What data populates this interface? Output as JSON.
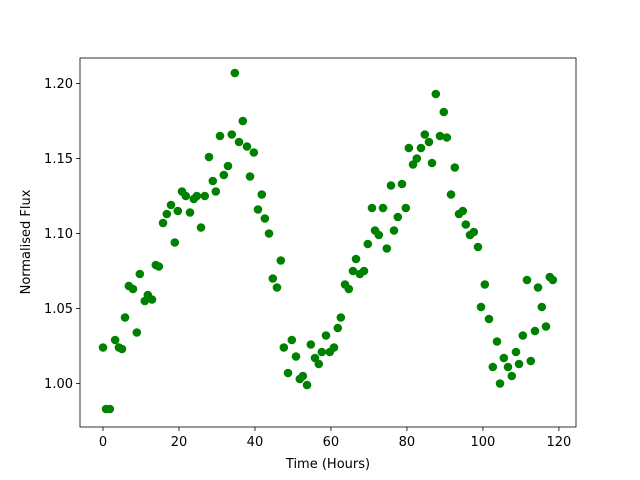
{
  "chart_data": {
    "type": "scatter",
    "xlabel": "Time (Hours)",
    "ylabel": "Normalised Flux",
    "color": "#008000",
    "xlim": [
      -6.05,
      124.5
    ],
    "ylim": [
      0.971,
      1.217
    ],
    "xticks": [
      0,
      20,
      40,
      60,
      80,
      100,
      120
    ],
    "yticks": [
      {
        "value": 1.0,
        "label": "1.00"
      },
      1.05,
      {
        "value": 1.1,
        "label": "1.10"
      },
      1.15,
      {
        "value": 1.2,
        "label": "1.20"
      }
    ],
    "x": [
      0,
      0.8,
      1.8,
      3.2,
      4.2,
      5,
      5.8,
      6.8,
      7.9,
      8.9,
      9.7,
      11,
      11.8,
      12.9,
      13.9,
      14.7,
      15.8,
      16.8,
      17.9,
      18.9,
      19.7,
      20.8,
      21.8,
      22.9,
      23.9,
      24.7,
      25.8,
      26.8,
      27.9,
      28.9,
      29.7,
      30.8,
      31.8,
      32.9,
      33.9,
      34.7,
      35.8,
      36.8,
      37.9,
      38.7,
      39.7,
      40.8,
      41.8,
      42.6,
      43.7,
      44.7,
      45.8,
      46.8,
      47.6,
      48.7,
      49.7,
      50.8,
      51.8,
      52.6,
      53.7,
      54.7,
      55.8,
      56.8,
      57.6,
      58.7,
      59.7,
      60.8,
      61.8,
      62.6,
      63.7,
      64.7,
      65.8,
      66.6,
      67.6,
      68.7,
      69.7,
      70.8,
      71.6,
      72.6,
      73.7,
      74.7,
      75.8,
      76.6,
      77.6,
      78.7,
      79.7,
      80.5,
      81.6,
      82.6,
      83.7,
      84.7,
      85.8,
      86.6,
      87.6,
      88.7,
      89.7,
      90.5,
      91.6,
      92.6,
      93.7,
      94.7,
      95.5,
      96.6,
      97.6,
      98.7,
      99.5,
      100.5,
      101.6,
      102.6,
      103.7,
      104.5,
      105.5,
      106.6,
      107.6,
      108.7,
      109.5,
      110.5,
      111.6,
      112.6,
      113.7,
      114.5,
      115.5,
      116.6,
      117.6,
      118.4
    ],
    "values": [
      1.024,
      0.983,
      0.983,
      1.029,
      1.024,
      1.023,
      1.044,
      1.065,
      1.063,
      1.034,
      1.073,
      1.055,
      1.059,
      1.056,
      1.079,
      1.078,
      1.107,
      1.113,
      1.119,
      1.094,
      1.115,
      1.128,
      1.125,
      1.114,
      1.123,
      1.125,
      1.104,
      1.125,
      1.151,
      1.135,
      1.128,
      1.165,
      1.139,
      1.145,
      1.166,
      1.207,
      1.161,
      1.175,
      1.158,
      1.138,
      1.154,
      1.116,
      1.126,
      1.11,
      1.1,
      1.07,
      1.064,
      1.082,
      1.024,
      1.007,
      1.029,
      1.018,
      1.003,
      1.005,
      0.999,
      1.026,
      1.017,
      1.013,
      1.021,
      1.032,
      1.021,
      1.024,
      1.037,
      1.044,
      1.066,
      1.063,
      1.075,
      1.083,
      1.073,
      1.075,
      1.093,
      1.117,
      1.102,
      1.099,
      1.117,
      1.09,
      1.132,
      1.102,
      1.111,
      1.133,
      1.117,
      1.157,
      1.146,
      1.15,
      1.157,
      1.166,
      1.161,
      1.147,
      1.193,
      1.165,
      1.181,
      1.164,
      1.126,
      1.144,
      1.113,
      1.115,
      1.106,
      1.099,
      1.101,
      1.091,
      1.051,
      1.066,
      1.043,
      1.011,
      1.028,
      1.0,
      1.017,
      1.011,
      1.005,
      1.021,
      1.013,
      1.032,
      1.069,
      1.015,
      1.035,
      1.064,
      1.051,
      1.038,
      1.071,
      1.069
    ]
  }
}
